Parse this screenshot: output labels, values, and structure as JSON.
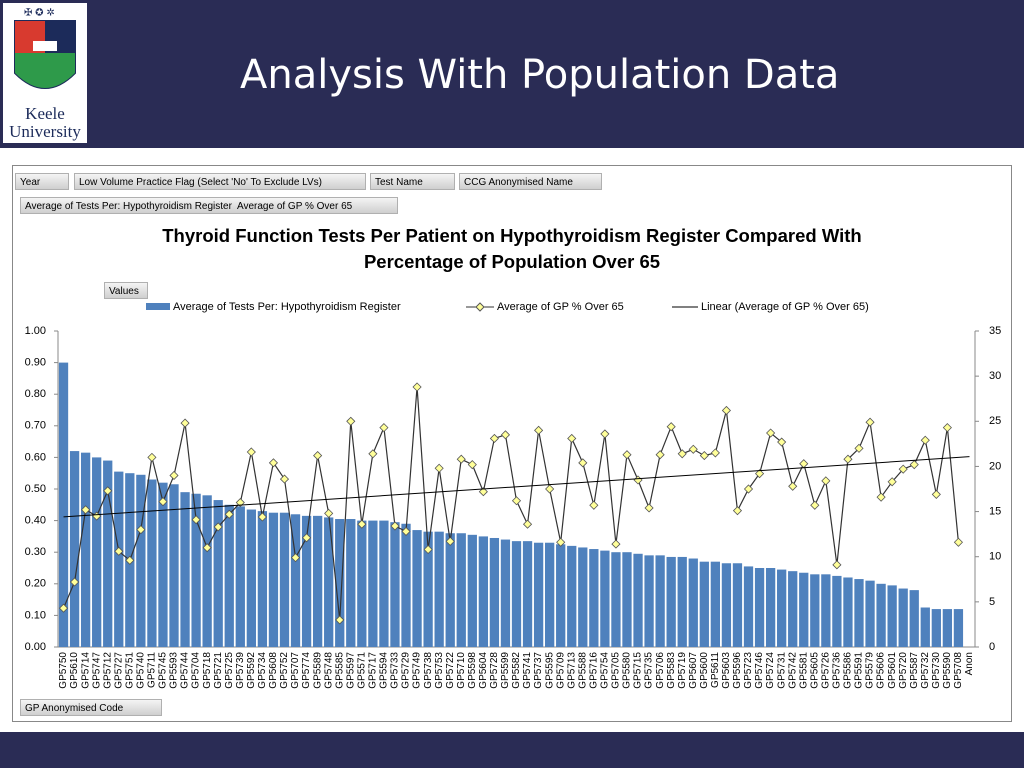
{
  "header": {
    "title": "Analysis With Population Data",
    "logo_lines": [
      "Keele",
      "University"
    ]
  },
  "pivot": {
    "filters": [
      "Year",
      "Low Volume Practice Flag (Select 'No' To Exclude LVs)",
      "Test Name",
      "CCG Anonymised Name"
    ],
    "values_label": "Values",
    "axis_field": "GP Anonymised Code"
  },
  "chart_data": {
    "type": "combo",
    "title": "Thyroid Function Tests Per Patient on Hypothyroidism Register Compared With Percentage of Population Over 65",
    "categories": [
      "GP5750",
      "GP5610",
      "GP5714",
      "GP5747",
      "GP5712",
      "GP5727",
      "GP5751",
      "GP5740",
      "GP5711",
      "GP5745",
      "GP5593",
      "GP5744",
      "GP5704",
      "GP5718",
      "GP5721",
      "GP5725",
      "GP5739",
      "GP5592",
      "GP5734",
      "GP5608",
      "GP5752",
      "GP5707",
      "GP5774",
      "GP5589",
      "GP5748",
      "GP5585",
      "GP5597",
      "GP5571",
      "GP5717",
      "GP5594",
      "GP5733",
      "GP5729",
      "GP5749",
      "GP5738",
      "GP5753",
      "GP5722",
      "GP5710",
      "GP5598",
      "GP5604",
      "GP5728",
      "GP5599",
      "GP5582",
      "GP5741",
      "GP5737",
      "GP5595",
      "GP5709",
      "GP5713",
      "GP5588",
      "GP5716",
      "GP5754",
      "GP5705",
      "GP5580",
      "GP5715",
      "GP5735",
      "GP5706",
      "GP5583",
      "GP5719",
      "GP5607",
      "GP5600",
      "GP5611",
      "GP5603",
      "GP5596",
      "GP5723",
      "GP5746",
      "GP5724",
      "GP5731",
      "GP5742",
      "GP5581",
      "GP5605",
      "GP5726",
      "GP5736",
      "GP5586",
      "GP5591",
      "GP5579",
      "GP5606",
      "GP5601",
      "GP5720",
      "GP5587",
      "GP5732",
      "GP5730",
      "GP5590",
      "GP5708",
      "Anon"
    ],
    "series": [
      {
        "name": "Average of Tests Per: Hypothyroidism Register",
        "type": "bar",
        "color": "#4f81bd",
        "values": [
          0.9,
          0.62,
          0.615,
          0.6,
          0.59,
          0.555,
          0.55,
          0.545,
          0.53,
          0.52,
          0.515,
          0.49,
          0.485,
          0.48,
          0.465,
          0.45,
          0.445,
          0.435,
          0.43,
          0.425,
          0.425,
          0.42,
          0.415,
          0.415,
          0.41,
          0.405,
          0.405,
          0.4,
          0.4,
          0.4,
          0.395,
          0.39,
          0.37,
          0.365,
          0.365,
          0.36,
          0.36,
          0.355,
          0.35,
          0.345,
          0.34,
          0.335,
          0.335,
          0.33,
          0.33,
          0.325,
          0.32,
          0.315,
          0.31,
          0.305,
          0.3,
          0.3,
          0.295,
          0.29,
          0.29,
          0.285,
          0.285,
          0.28,
          0.27,
          0.27,
          0.265,
          0.265,
          0.255,
          0.25,
          0.25,
          0.245,
          0.24,
          0.235,
          0.23,
          0.23,
          0.225,
          0.22,
          0.215,
          0.21,
          0.2,
          0.195,
          0.185,
          0.18,
          0.125,
          0.12,
          0.12,
          0.12,
          null
        ]
      },
      {
        "name": "Average of GP % Over 65",
        "type": "line",
        "axis": "y2",
        "color": "#333333",
        "marker_color": "#ffff99",
        "values": [
          4.3,
          7.2,
          15.2,
          14.5,
          17.3,
          10.6,
          9.6,
          13.0,
          21.0,
          16.1,
          19.0,
          24.8,
          14.1,
          11.0,
          13.3,
          14.7,
          16.0,
          21.6,
          14.4,
          20.4,
          18.6,
          9.9,
          12.1,
          21.2,
          14.8,
          3.0,
          25.0,
          13.6,
          21.4,
          24.3,
          13.4,
          12.8,
          28.8,
          10.8,
          19.8,
          11.7,
          20.8,
          20.2,
          17.2,
          23.1,
          23.5,
          16.2,
          13.6,
          24.0,
          17.5,
          11.6,
          23.1,
          20.4,
          15.7,
          23.6,
          11.4,
          21.3,
          18.5,
          15.4,
          21.3,
          24.4,
          21.4,
          21.9,
          21.2,
          21.5,
          26.2,
          15.1,
          17.5,
          19.2,
          23.7,
          22.7,
          17.8,
          20.3,
          15.7,
          18.4,
          9.1,
          20.8,
          22.0,
          24.9,
          16.6,
          18.3,
          19.7,
          20.2,
          22.9,
          16.9,
          24.3,
          11.6,
          null
        ]
      }
    ],
    "trendline": {
      "name": "Linear (Average of GP % Over 65)",
      "type": "linear",
      "color": "#000000"
    },
    "ylim": [
      0,
      1
    ],
    "yticks": [
      {
        "value": 0,
        "label": "0.00"
      },
      {
        "value": 0.1,
        "label": "0.10"
      },
      {
        "value": 0.2,
        "label": "0.20"
      },
      {
        "value": 0.3,
        "label": "0.30"
      },
      {
        "value": 0.4,
        "label": "0.40"
      },
      {
        "value": 0.5,
        "label": "0.50"
      },
      {
        "value": 0.6,
        "label": "0.60"
      },
      {
        "value": 0.7,
        "label": "0.70"
      },
      {
        "value": 0.8,
        "label": "0.80"
      },
      {
        "value": 0.9,
        "label": "0.90"
      },
      {
        "value": 1,
        "label": "1.00"
      }
    ],
    "y2lim": [
      0,
      35
    ],
    "y2ticks": [
      0,
      5,
      10,
      15,
      20,
      25,
      30,
      35
    ],
    "grid": false
  }
}
